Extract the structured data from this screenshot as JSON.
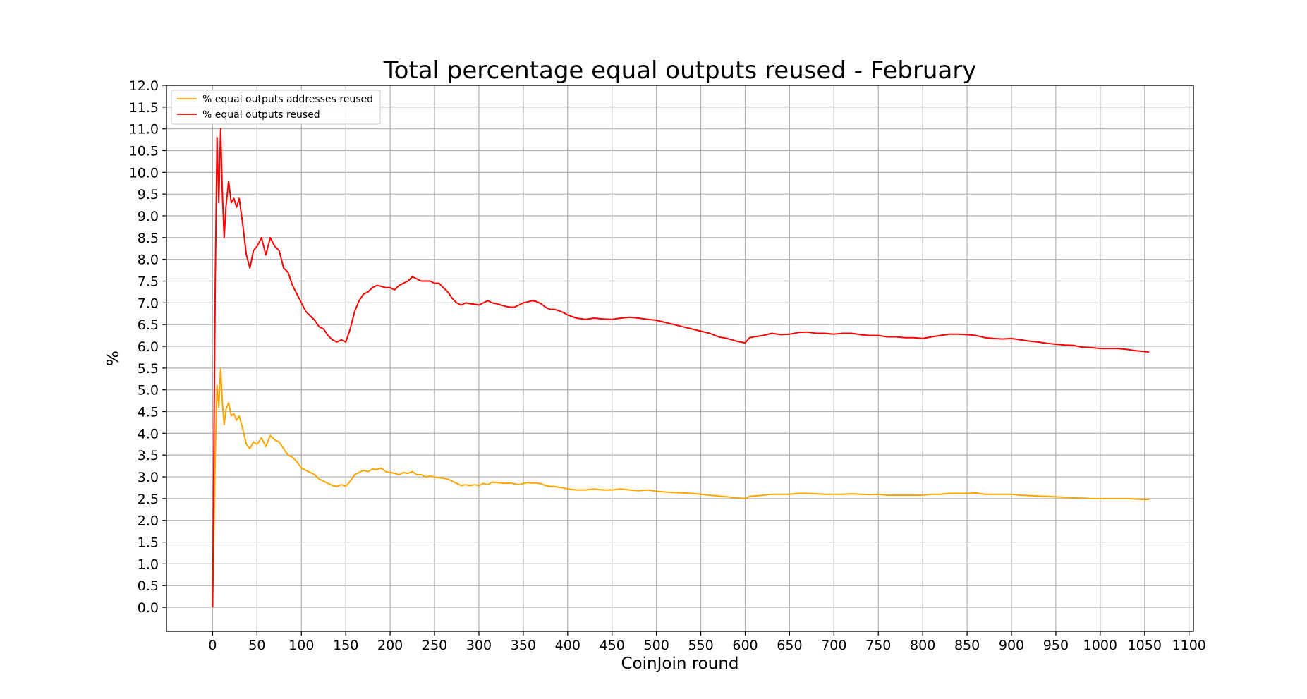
{
  "chart_data": {
    "type": "line",
    "title": "Total percentage equal outputs reused - February",
    "xlabel": "CoinJoin round",
    "ylabel": "%",
    "xlim": [
      -52,
      1105
    ],
    "ylim": [
      -0.55,
      12.0
    ],
    "xticks": [
      0,
      50,
      100,
      150,
      200,
      250,
      300,
      350,
      400,
      450,
      500,
      550,
      600,
      650,
      700,
      750,
      800,
      850,
      900,
      950,
      1000,
      1050,
      1100
    ],
    "yticks": [
      0.0,
      0.5,
      1.0,
      1.5,
      2.0,
      2.5,
      3.0,
      3.5,
      4.0,
      4.5,
      5.0,
      5.5,
      6.0,
      6.5,
      7.0,
      7.5,
      8.0,
      8.5,
      9.0,
      9.5,
      10.0,
      10.5,
      11.0,
      11.5,
      12.0
    ],
    "grid": true,
    "legend_position": "top-left",
    "series": [
      {
        "name": "% equal outputs addresses reused",
        "color": "#ffa500",
        "x": [
          0,
          3,
          5,
          7,
          9,
          11,
          13,
          15,
          18,
          21,
          24,
          27,
          30,
          34,
          38,
          42,
          46,
          50,
          55,
          60,
          65,
          70,
          75,
          80,
          85,
          90,
          95,
          100,
          105,
          110,
          115,
          120,
          125,
          130,
          135,
          140,
          145,
          150,
          155,
          160,
          165,
          170,
          175,
          180,
          185,
          190,
          195,
          200,
          205,
          210,
          215,
          220,
          225,
          230,
          235,
          240,
          245,
          250,
          255,
          260,
          265,
          270,
          275,
          280,
          285,
          290,
          295,
          300,
          305,
          310,
          315,
          320,
          325,
          330,
          335,
          340,
          345,
          350,
          355,
          360,
          365,
          370,
          375,
          380,
          385,
          390,
          395,
          400,
          410,
          420,
          430,
          440,
          450,
          460,
          470,
          480,
          490,
          500,
          510,
          520,
          530,
          540,
          550,
          560,
          570,
          580,
          590,
          600,
          605,
          610,
          620,
          630,
          640,
          650,
          660,
          670,
          680,
          690,
          700,
          710,
          720,
          730,
          740,
          750,
          760,
          770,
          780,
          790,
          800,
          810,
          820,
          830,
          840,
          850,
          860,
          870,
          880,
          890,
          900,
          910,
          920,
          930,
          940,
          950,
          960,
          970,
          980,
          990,
          1000,
          1010,
          1020,
          1030,
          1040,
          1050,
          1055
        ],
        "values": [
          0.0,
          3.5,
          5.1,
          4.6,
          5.5,
          4.7,
          4.2,
          4.55,
          4.7,
          4.4,
          4.45,
          4.3,
          4.4,
          4.1,
          3.75,
          3.65,
          3.8,
          3.75,
          3.9,
          3.7,
          3.95,
          3.85,
          3.8,
          3.65,
          3.5,
          3.45,
          3.35,
          3.2,
          3.15,
          3.1,
          3.05,
          2.95,
          2.9,
          2.85,
          2.8,
          2.78,
          2.82,
          2.78,
          2.9,
          3.05,
          3.1,
          3.15,
          3.12,
          3.18,
          3.17,
          3.2,
          3.12,
          3.1,
          3.08,
          3.05,
          3.1,
          3.08,
          3.12,
          3.05,
          3.05,
          3.0,
          3.02,
          3.0,
          2.98,
          2.97,
          2.95,
          2.9,
          2.85,
          2.8,
          2.82,
          2.8,
          2.82,
          2.8,
          2.85,
          2.82,
          2.88,
          2.87,
          2.86,
          2.85,
          2.86,
          2.84,
          2.82,
          2.85,
          2.87,
          2.86,
          2.86,
          2.84,
          2.8,
          2.78,
          2.78,
          2.76,
          2.75,
          2.72,
          2.7,
          2.7,
          2.72,
          2.7,
          2.7,
          2.72,
          2.7,
          2.68,
          2.7,
          2.67,
          2.65,
          2.64,
          2.63,
          2.62,
          2.6,
          2.58,
          2.56,
          2.54,
          2.52,
          2.5,
          2.55,
          2.56,
          2.58,
          2.6,
          2.6,
          2.6,
          2.62,
          2.62,
          2.61,
          2.6,
          2.6,
          2.6,
          2.61,
          2.6,
          2.59,
          2.6,
          2.58,
          2.58,
          2.58,
          2.58,
          2.58,
          2.6,
          2.6,
          2.62,
          2.62,
          2.62,
          2.63,
          2.6,
          2.6,
          2.6,
          2.6,
          2.58,
          2.57,
          2.56,
          2.55,
          2.54,
          2.53,
          2.52,
          2.51,
          2.5,
          2.5,
          2.5,
          2.5,
          2.5,
          2.49,
          2.48,
          2.48
        ]
      },
      {
        "name": "% equal outputs reused",
        "color": "#ff0000",
        "x": [
          0,
          3,
          5,
          7,
          9,
          11,
          13,
          15,
          18,
          21,
          24,
          27,
          30,
          34,
          38,
          42,
          46,
          50,
          55,
          60,
          65,
          70,
          75,
          80,
          85,
          90,
          95,
          100,
          105,
          110,
          115,
          120,
          125,
          130,
          135,
          140,
          145,
          150,
          155,
          160,
          165,
          170,
          175,
          180,
          185,
          190,
          195,
          200,
          205,
          210,
          215,
          220,
          225,
          230,
          235,
          240,
          245,
          250,
          255,
          260,
          265,
          270,
          275,
          280,
          285,
          290,
          295,
          300,
          305,
          310,
          315,
          320,
          325,
          330,
          335,
          340,
          345,
          350,
          355,
          360,
          365,
          370,
          375,
          380,
          385,
          390,
          395,
          400,
          410,
          420,
          430,
          440,
          450,
          460,
          470,
          480,
          490,
          500,
          510,
          520,
          530,
          540,
          550,
          560,
          570,
          580,
          590,
          600,
          605,
          610,
          620,
          630,
          640,
          650,
          660,
          670,
          680,
          690,
          700,
          710,
          720,
          730,
          740,
          750,
          760,
          770,
          780,
          790,
          800,
          810,
          820,
          830,
          840,
          850,
          860,
          870,
          880,
          890,
          900,
          910,
          920,
          930,
          940,
          950,
          960,
          970,
          980,
          990,
          1000,
          1010,
          1020,
          1030,
          1040,
          1050,
          1055
        ],
        "values": [
          0.0,
          7.5,
          10.8,
          9.3,
          11.0,
          9.5,
          8.5,
          9.2,
          9.8,
          9.3,
          9.4,
          9.2,
          9.4,
          8.8,
          8.1,
          7.8,
          8.2,
          8.3,
          8.5,
          8.1,
          8.5,
          8.3,
          8.2,
          7.8,
          7.7,
          7.4,
          7.2,
          7.0,
          6.8,
          6.7,
          6.6,
          6.45,
          6.4,
          6.25,
          6.15,
          6.1,
          6.15,
          6.1,
          6.4,
          6.8,
          7.05,
          7.2,
          7.25,
          7.35,
          7.4,
          7.38,
          7.35,
          7.35,
          7.3,
          7.4,
          7.45,
          7.5,
          7.6,
          7.55,
          7.5,
          7.5,
          7.5,
          7.45,
          7.45,
          7.35,
          7.25,
          7.1,
          7.0,
          6.95,
          7.0,
          6.98,
          6.97,
          6.95,
          7.0,
          7.05,
          7.0,
          6.98,
          6.95,
          6.92,
          6.9,
          6.9,
          6.95,
          7.0,
          7.02,
          7.05,
          7.03,
          6.98,
          6.9,
          6.85,
          6.85,
          6.82,
          6.78,
          6.72,
          6.65,
          6.62,
          6.65,
          6.63,
          6.62,
          6.65,
          6.67,
          6.65,
          6.62,
          6.6,
          6.55,
          6.5,
          6.45,
          6.4,
          6.35,
          6.3,
          6.22,
          6.18,
          6.12,
          6.08,
          6.2,
          6.22,
          6.25,
          6.3,
          6.27,
          6.28,
          6.32,
          6.33,
          6.3,
          6.3,
          6.28,
          6.3,
          6.3,
          6.27,
          6.25,
          6.25,
          6.22,
          6.22,
          6.2,
          6.2,
          6.18,
          6.22,
          6.25,
          6.28,
          6.28,
          6.27,
          6.25,
          6.2,
          6.18,
          6.17,
          6.18,
          6.15,
          6.12,
          6.1,
          6.07,
          6.05,
          6.03,
          6.02,
          5.98,
          5.97,
          5.95,
          5.95,
          5.95,
          5.93,
          5.9,
          5.88,
          5.87
        ]
      }
    ]
  }
}
